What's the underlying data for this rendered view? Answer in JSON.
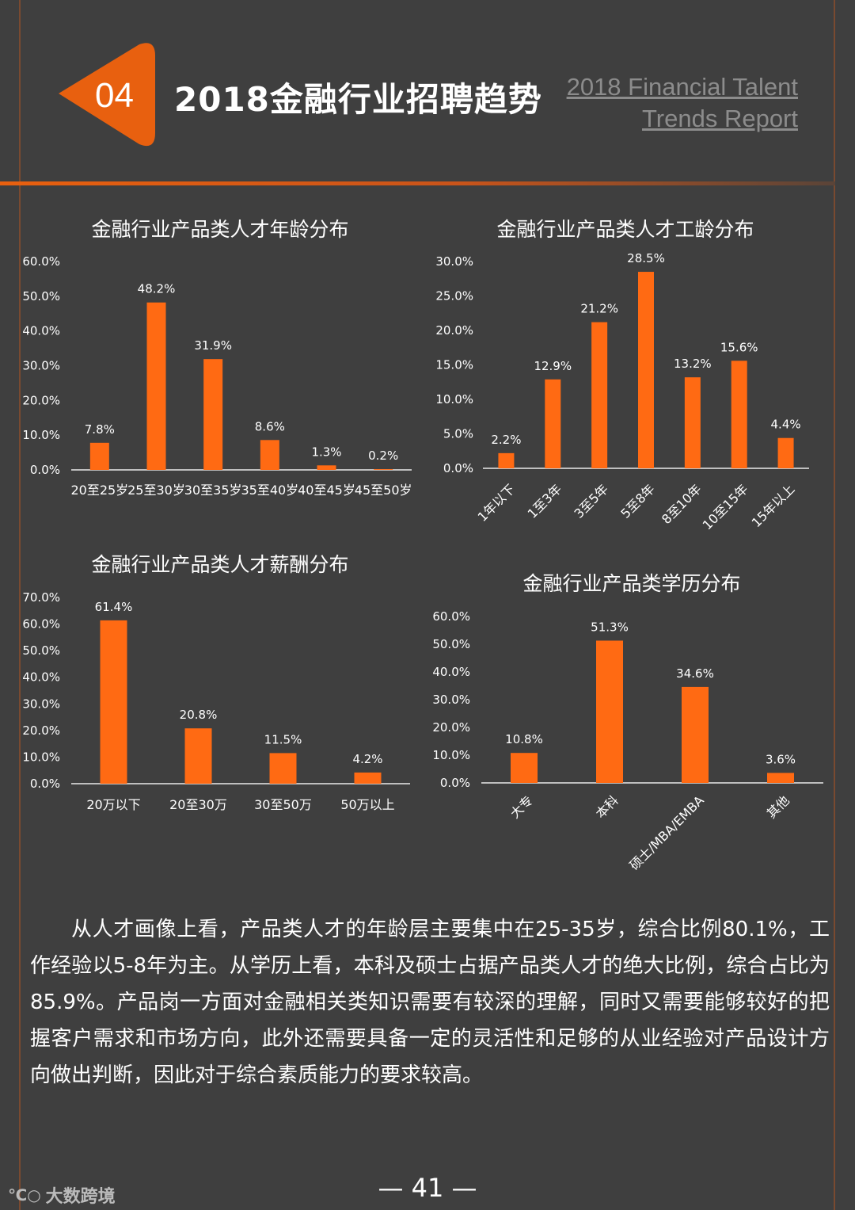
{
  "header": {
    "badge_number": "04",
    "title": "2018金融行业招聘趋势",
    "subtitle_line1": "2018 Financial Talent",
    "subtitle_line2": "Trends Report"
  },
  "colors": {
    "bar": "#ff6a13",
    "background": "#3f3f3f",
    "accent": "#e8600f"
  },
  "chart_data": [
    {
      "id": "age",
      "type": "bar",
      "title": "金融行业产品类人才年龄分布",
      "categories": [
        "20至25岁",
        "25至30岁",
        "30至35岁",
        "35至40岁",
        "40至45岁",
        "45至50岁"
      ],
      "values": [
        7.8,
        48.2,
        31.9,
        8.6,
        1.3,
        0.2
      ],
      "value_labels": [
        "7.8%",
        "48.2%",
        "31.9%",
        "8.6%",
        "1.3%",
        "0.2%"
      ],
      "yticks": [
        "0.0%",
        "10.0%",
        "20.0%",
        "30.0%",
        "40.0%",
        "50.0%",
        "60.0%"
      ],
      "ylim": [
        0,
        60
      ],
      "rotate_labels": false
    },
    {
      "id": "experience",
      "type": "bar",
      "title": "金融行业产品类人才工龄分布",
      "categories": [
        "1年以下",
        "1至3年",
        "3至5年",
        "5至8年",
        "8至10年",
        "10至15年",
        "15年以上"
      ],
      "values": [
        2.2,
        12.9,
        21.2,
        28.5,
        13.2,
        15.6,
        4.4
      ],
      "value_labels": [
        "2.2%",
        "12.9%",
        "21.2%",
        "28.5%",
        "13.2%",
        "15.6%",
        "4.4%"
      ],
      "yticks": [
        "0.0%",
        "5.0%",
        "10.0%",
        "15.0%",
        "20.0%",
        "25.0%",
        "30.0%"
      ],
      "ylim": [
        0,
        30
      ],
      "rotate_labels": true
    },
    {
      "id": "salary",
      "type": "bar",
      "title": "金融行业产品类人才薪酬分布",
      "categories": [
        "20万以下",
        "20至30万",
        "30至50万",
        "50万以上"
      ],
      "values": [
        61.4,
        20.8,
        11.5,
        4.2
      ],
      "value_labels": [
        "61.4%",
        "20.8%",
        "11.5%",
        "4.2%"
      ],
      "yticks": [
        "0.0%",
        "10.0%",
        "20.0%",
        "30.0%",
        "40.0%",
        "50.0%",
        "60.0%",
        "70.0%"
      ],
      "ylim": [
        0,
        70
      ],
      "rotate_labels": false
    },
    {
      "id": "education",
      "type": "bar",
      "title": "金融行业产品类学历分布",
      "categories": [
        "大专",
        "本科",
        "硕士/MBA/EMBA",
        "其他"
      ],
      "values": [
        10.8,
        51.3,
        34.6,
        3.6
      ],
      "value_labels": [
        "10.8%",
        "51.3%",
        "34.6%",
        "3.6%"
      ],
      "yticks": [
        "0.0%",
        "10.0%",
        "20.0%",
        "30.0%",
        "40.0%",
        "50.0%",
        "60.0%"
      ],
      "ylim": [
        0,
        60
      ],
      "rotate_labels": true
    }
  ],
  "paragraph": "从人才画像上看，产品类人才的年龄层主要集中在25-35岁，综合比例80.1%，工作经验以5-8年为主。从学历上看，本科及硕士占据产品类人才的绝大比例，综合占比为85.9%。产品岗一方面对金融相关类知识需要有较深的理解，同时又需要能够较好的把握客户需求和市场方向，此外还需要具备一定的灵活性和足够的从业经验对产品设计方向做出判断，因此对于综合素质能力的要求较高。",
  "footer": {
    "page_number": "— 41 —",
    "watermark_text": "大数跨境"
  }
}
